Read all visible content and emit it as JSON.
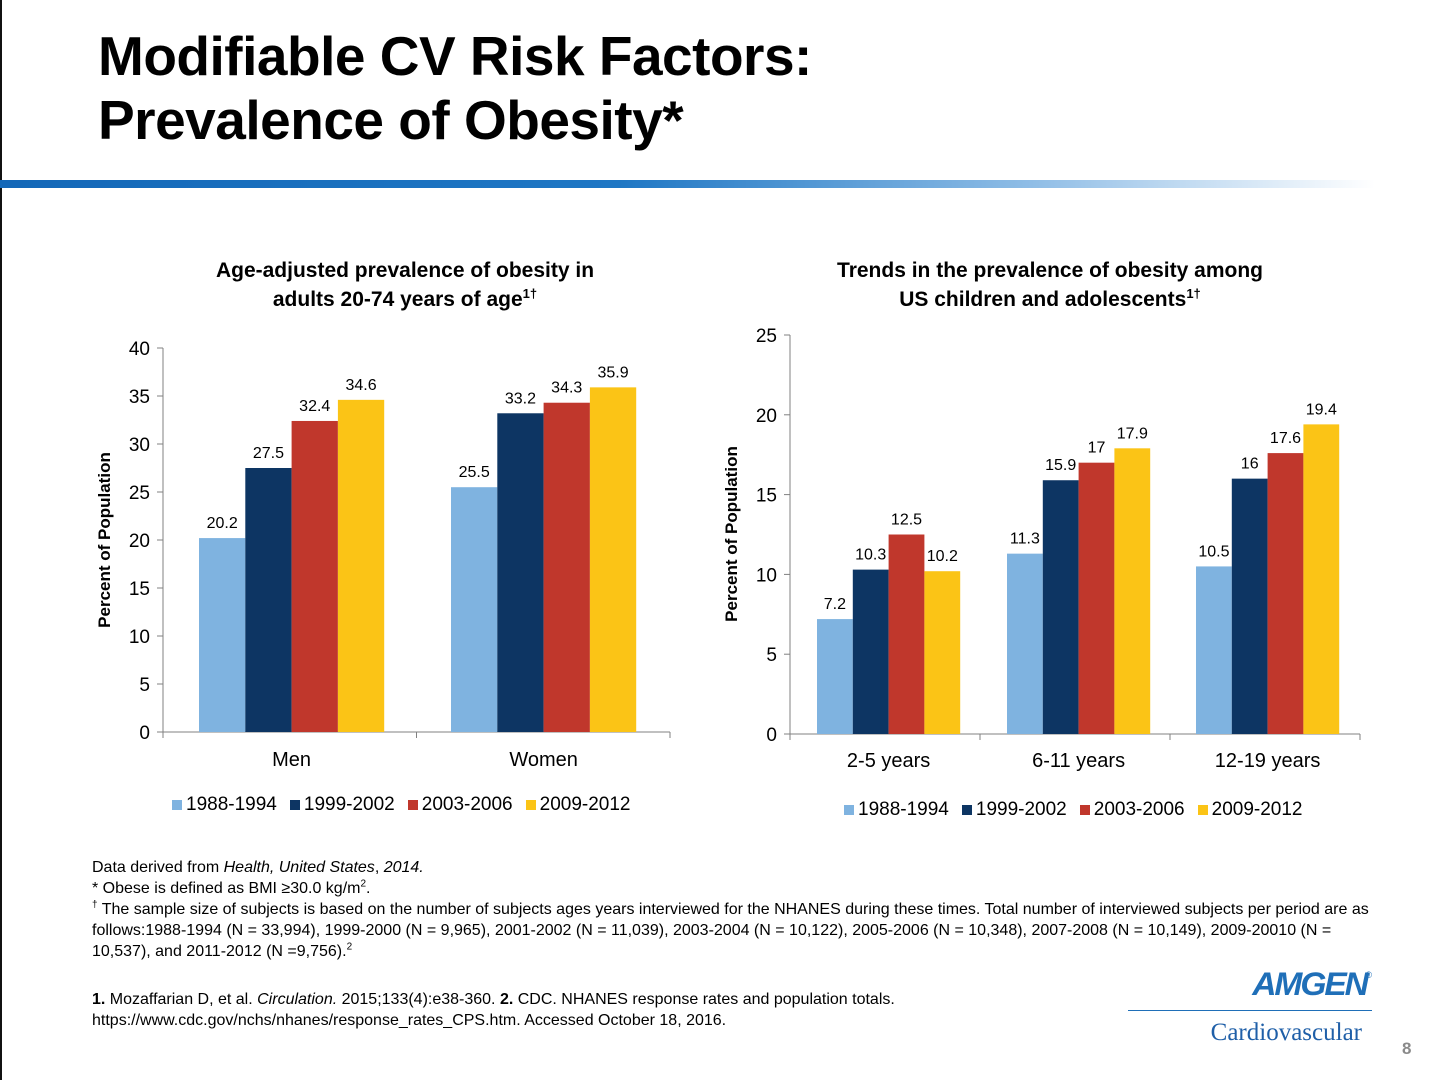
{
  "slide": {
    "title_line1": "Modifiable CV Risk Factors:",
    "title_line2": "Prevalence of Obesity*",
    "page_number": "8"
  },
  "colors": {
    "title_bar": "#1468b8",
    "series": [
      "#7fb3e0",
      "#0d3563",
      "#c0372c",
      "#fbc416"
    ],
    "brand": "#1f6fb8"
  },
  "chart_data": [
    {
      "type": "bar",
      "title": "Age-adjusted prevalence of obesity in adults 20-74 years of age",
      "title_line1": "Age-adjusted prevalence of obesity in",
      "title_line2": "adults 20-74 years of age",
      "title_sup": "1†",
      "ylabel": "Percent of Population",
      "xlabel": "",
      "ylim": [
        0,
        40
      ],
      "yticks": [
        0,
        5,
        10,
        15,
        20,
        25,
        30,
        35,
        40
      ],
      "categories": [
        "Men",
        "Women"
      ],
      "series": [
        {
          "name": "1988-1994",
          "values": [
            20.2,
            25.5
          ]
        },
        {
          "name": "1999-2002",
          "values": [
            27.5,
            33.2
          ]
        },
        {
          "name": "2003-2006",
          "values": [
            32.4,
            34.3
          ]
        },
        {
          "name": "2009-2012",
          "values": [
            34.6,
            35.9
          ]
        }
      ],
      "grid": false,
      "legend": "bottom"
    },
    {
      "type": "bar",
      "title": "Trends in the prevalence of obesity among US children and adolescents",
      "title_line1": "Trends in the prevalence of obesity among",
      "title_line2": "US children and adolescents",
      "title_sup": "1†",
      "ylabel": "Percent of Population",
      "xlabel": "",
      "ylim": [
        0,
        25
      ],
      "yticks": [
        0,
        5,
        10,
        15,
        20,
        25
      ],
      "categories": [
        "2-5 years",
        "6-11 years",
        "12-19 years"
      ],
      "series": [
        {
          "name": "1988-1994",
          "values": [
            7.2,
            11.3,
            10.5
          ]
        },
        {
          "name": "1999-2002",
          "values": [
            10.3,
            15.9,
            16
          ]
        },
        {
          "name": "2003-2006",
          "values": [
            12.5,
            17,
            17.6
          ]
        },
        {
          "name": "2009-2012",
          "values": [
            10.2,
            17.9,
            19.4
          ]
        }
      ],
      "grid": false,
      "legend": "bottom"
    }
  ],
  "notes": {
    "source_prefix": "Data derived from ",
    "source_title": "Health, United States",
    "source_sep": ", ",
    "source_year": "2014.",
    "obese_def": "* Obese is defined as BMI ≥30.0 kg/m",
    "obese_sup": "2",
    "obese_end": ".",
    "sample_mark": "†",
    "sample_text": " The sample size of subjects is based on the number of subjects ages years interviewed for the NHANES during these times. Total number of interviewed subjects per period are as follows:1988-1994 (N = 33,994), 1999-2000 (N = 9,965), 2001-2002 (N = 11,039), 2003-2004 (N = 10,122), 2005-2006 (N = 10,348), 2007-2008 (N = 10,149), 2009-20010 (N = 10,537), and 2011-2012 (N =9,756).",
    "sample_sup": "2"
  },
  "references": {
    "ref1_num": "1.",
    "ref1_authors": " Mozaffarian D, et al. ",
    "ref1_journal": "Circulation.",
    "ref1_rest": " 2015;133(4):e38-360. ",
    "ref2_num": "2.",
    "ref2_text": " CDC. NHANES response rates and population totals.",
    "ref2_url_line": "https://www.cdc.gov/nchs/nhanes/response_rates_CPS.htm. Accessed October 18, 2016."
  },
  "brand": {
    "name": "AMGEN",
    "registered": "®",
    "division": "Cardiovascular"
  }
}
